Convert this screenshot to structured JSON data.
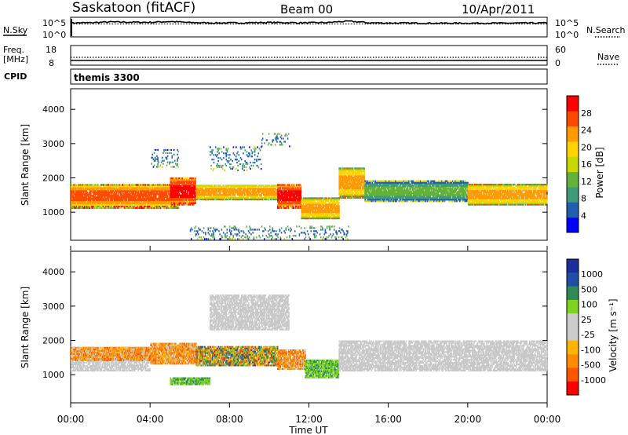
{
  "header": {
    "station": "Saskatoon (fitACF)",
    "beam": "Beam 00",
    "date": "10/Apr/2011"
  },
  "colors": {
    "power_scale": [
      "#0000ff",
      "#1f5fae",
      "#3f9a7a",
      "#63b23a",
      "#c8d800",
      "#ffd200",
      "#ff9a00",
      "#ff4a00",
      "#ff0000"
    ],
    "velocity_scale": [
      "#ff0000",
      "#ff5500",
      "#ff8c00",
      "#ffb400",
      "#cccccc",
      "#cccccc",
      "#7ed321",
      "#2e8b57",
      "#1e4fa8",
      "#1a2f9c"
    ],
    "ground_scatter": "#c8c8c8"
  },
  "chart_data": [
    {
      "type": "line",
      "panel": "noise",
      "left_label": "N.Sky",
      "right_label": "N.Search",
      "left_ticks": [
        "10^5",
        "10^0"
      ],
      "right_ticks": [
        "10^5",
        "10^0"
      ],
      "y_scale": "log",
      "ylim": [
        1,
        100000
      ],
      "series": [
        {
          "name": "N.Sky",
          "style": "solid",
          "x": [
            0,
            1,
            2,
            3,
            4,
            5,
            6,
            7,
            8,
            9,
            10,
            11,
            12,
            13,
            14,
            15,
            16,
            17,
            18,
            19,
            20,
            21,
            22,
            23,
            24
          ],
          "y": [
            3500,
            3800,
            6000,
            5200,
            4800,
            7500,
            4200,
            3600,
            3400,
            3900,
            4500,
            4000,
            3700,
            4300,
            9000,
            3600,
            3300,
            3100,
            3000,
            2900,
            3000,
            3100,
            3000,
            3200,
            3300
          ]
        },
        {
          "name": "N.Search",
          "style": "dotted",
          "x": [
            0,
            24
          ],
          "y": [
            2000,
            2000
          ]
        }
      ]
    },
    {
      "type": "line",
      "panel": "frequency",
      "left_label": "Freq.",
      "left_units": "[MHz]",
      "right_label": "Nave",
      "left_ticks": [
        "18",
        "8"
      ],
      "right_ticks": [
        "60",
        "0"
      ],
      "ylim": [
        8,
        18
      ],
      "right_ylim": [
        0,
        60
      ],
      "series": [
        {
          "name": "Freq.",
          "style": "solid",
          "x": [
            0,
            4,
            8,
            12,
            16,
            20,
            24
          ],
          "y": [
            10.4,
            10.4,
            10.4,
            10.4,
            10.4,
            10.4,
            10.4
          ]
        },
        {
          "name": "Nave",
          "style": "dotted",
          "x": [
            0,
            4,
            8,
            12,
            16,
            20,
            24
          ],
          "y": [
            24,
            24,
            24,
            24,
            24,
            24,
            24
          ]
        }
      ]
    },
    {
      "type": "table",
      "panel": "cpid",
      "label": "CPID",
      "value": "themis 3300"
    },
    {
      "type": "heatmap",
      "panel": "power",
      "ylabel": "Slant Range [km]",
      "yticks": [
        1000,
        2000,
        3000,
        4000
      ],
      "ylim": [
        180,
        4600
      ],
      "colorbar_label": "Power [dB]",
      "colorbar_ticks": [
        4,
        8,
        12,
        16,
        20,
        24,
        28
      ],
      "clim": [
        0,
        32
      ],
      "bands": [
        {
          "t0": 0.0,
          "t1": 5.4,
          "lo": 1100,
          "hi": 1800,
          "val": "high"
        },
        {
          "t0": 5.0,
          "t1": 6.3,
          "lo": 1200,
          "hi": 2000,
          "val": "peak"
        },
        {
          "t0": 6.3,
          "t1": 10.4,
          "lo": 1350,
          "hi": 1800,
          "val": "mid"
        },
        {
          "t0": 10.4,
          "t1": 11.6,
          "lo": 1100,
          "hi": 1800,
          "val": "peak"
        },
        {
          "t0": 11.6,
          "t1": 13.5,
          "lo": 800,
          "hi": 1400,
          "val": "mid"
        },
        {
          "t0": 13.5,
          "t1": 14.8,
          "lo": 1400,
          "hi": 2300,
          "val": "mid"
        },
        {
          "t0": 14.8,
          "t1": 20.0,
          "lo": 1300,
          "hi": 1900,
          "val": "low"
        },
        {
          "t0": 20.0,
          "t1": 24.0,
          "lo": 1200,
          "hi": 1800,
          "val": "mid"
        },
        {
          "t0": 7.0,
          "t1": 9.6,
          "lo": 2200,
          "hi": 2900,
          "val": "sparse"
        },
        {
          "t0": 9.6,
          "t1": 11.0,
          "lo": 2900,
          "hi": 3300,
          "val": "sparse"
        },
        {
          "t0": 4.0,
          "t1": 5.4,
          "lo": 2300,
          "hi": 2800,
          "val": "sparse"
        },
        {
          "t0": 6.0,
          "t1": 14.0,
          "lo": 200,
          "hi": 600,
          "val": "sparse"
        }
      ]
    },
    {
      "type": "heatmap",
      "panel": "velocity",
      "xlabel": "Time UT",
      "xticks": [
        "00:00",
        "04:00",
        "08:00",
        "12:00",
        "16:00",
        "20:00",
        "00:00"
      ],
      "xlim": [
        0,
        24
      ],
      "ylabel": "Slant Range [km]",
      "yticks": [
        1000,
        2000,
        3000,
        4000
      ],
      "ylim": [
        180,
        4600
      ],
      "colorbar_label": "Velocity [m s⁻¹]",
      "colorbar_ticks": [
        1000,
        500,
        100,
        25,
        -25,
        -100,
        -500,
        -1000
      ],
      "bands": [
        {
          "t0": 0.0,
          "t1": 4.0,
          "lo": 1100,
          "hi": 1800,
          "val": "ground"
        },
        {
          "t0": 0.0,
          "t1": 4.0,
          "lo": 1400,
          "hi": 1800,
          "val": "neg"
        },
        {
          "t0": 4.0,
          "t1": 6.3,
          "lo": 1300,
          "hi": 1900,
          "val": "neg"
        },
        {
          "t0": 6.3,
          "t1": 10.4,
          "lo": 1250,
          "hi": 1800,
          "val": "mixed"
        },
        {
          "t0": 10.4,
          "t1": 11.8,
          "lo": 1150,
          "hi": 1700,
          "val": "neg"
        },
        {
          "t0": 11.8,
          "t1": 13.5,
          "lo": 900,
          "hi": 1400,
          "val": "pos"
        },
        {
          "t0": 13.5,
          "t1": 24.0,
          "lo": 1100,
          "hi": 2000,
          "val": "ground"
        },
        {
          "t0": 7.0,
          "t1": 11.0,
          "lo": 2300,
          "hi": 3300,
          "val": "ground"
        },
        {
          "t0": 5.0,
          "t1": 7.0,
          "lo": 700,
          "hi": 900,
          "val": "pos"
        }
      ]
    }
  ]
}
